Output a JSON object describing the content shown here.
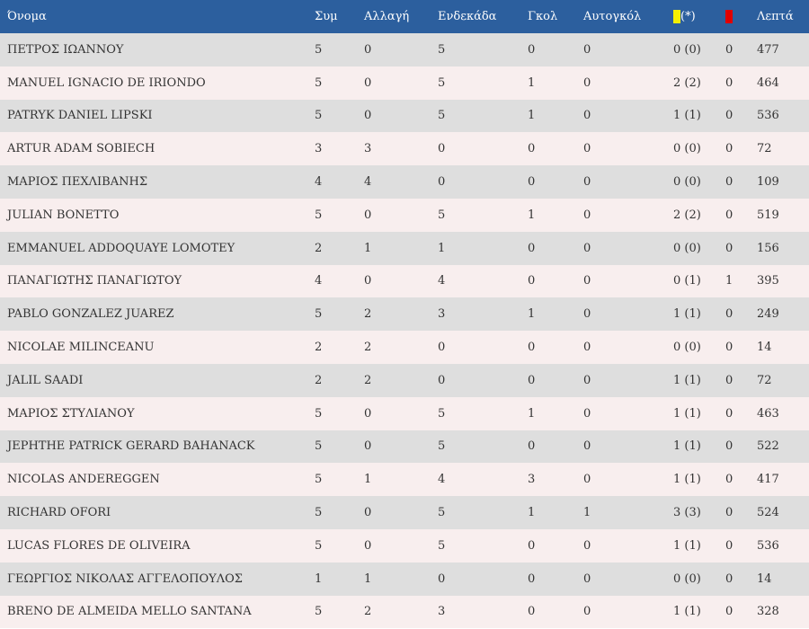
{
  "headers": {
    "name": "Όνομα",
    "apps": "Συμ",
    "sub": "Αλλαγή",
    "lineup": "Ενδεκάδα",
    "goals": "Γκολ",
    "own_goals": "Αυτογκόλ",
    "yellow_suffix": "(*)",
    "minutes": "Λεπτά"
  },
  "icons": {
    "yellow": "yellow-card-icon",
    "red": "red-card-icon"
  },
  "colors": {
    "header_bg": "#2c5f9e",
    "row_odd": "#dedede",
    "row_even": "#f8eeee",
    "yellow_card": "#f5f000",
    "red_card": "#e00000"
  },
  "rows": [
    {
      "name": "ΠΕΤΡΟΣ ΙΩΑΝΝΟΥ",
      "apps": "5",
      "sub": "0",
      "lineup": "5",
      "goals": "0",
      "own_goals": "0",
      "yellow": "0 (0)",
      "red": "0",
      "minutes": "477"
    },
    {
      "name": "MANUEL IGNACIO DE IRIONDO",
      "apps": "5",
      "sub": "0",
      "lineup": "5",
      "goals": "1",
      "own_goals": "0",
      "yellow": "2 (2)",
      "red": "0",
      "minutes": "464"
    },
    {
      "name": "PATRYK DANIEL LIPSKI",
      "apps": "5",
      "sub": "0",
      "lineup": "5",
      "goals": "1",
      "own_goals": "0",
      "yellow": "1 (1)",
      "red": "0",
      "minutes": "536"
    },
    {
      "name": "ARTUR ADAM SOBIECH",
      "apps": "3",
      "sub": "3",
      "lineup": "0",
      "goals": "0",
      "own_goals": "0",
      "yellow": "0 (0)",
      "red": "0",
      "minutes": "72"
    },
    {
      "name": "ΜΑΡΙΟΣ ΠΕΧΛΙΒΑΝΗΣ",
      "apps": "4",
      "sub": "4",
      "lineup": "0",
      "goals": "0",
      "own_goals": "0",
      "yellow": "0 (0)",
      "red": "0",
      "minutes": "109"
    },
    {
      "name": "JULIAN BONETTO",
      "apps": "5",
      "sub": "0",
      "lineup": "5",
      "goals": "1",
      "own_goals": "0",
      "yellow": "2 (2)",
      "red": "0",
      "minutes": "519"
    },
    {
      "name": "EMMANUEL ADDOQUAYE LOMOTEY",
      "apps": "2",
      "sub": "1",
      "lineup": "1",
      "goals": "0",
      "own_goals": "0",
      "yellow": "0 (0)",
      "red": "0",
      "minutes": "156"
    },
    {
      "name": "ΠΑΝΑΓΙΩΤΗΣ ΠΑΝΑΓΙΩΤΟΥ",
      "apps": "4",
      "sub": "0",
      "lineup": "4",
      "goals": "0",
      "own_goals": "0",
      "yellow": "0 (1)",
      "red": "1",
      "minutes": "395"
    },
    {
      "name": "PABLO GONZALEZ JUAREZ",
      "apps": "5",
      "sub": "2",
      "lineup": "3",
      "goals": "1",
      "own_goals": "0",
      "yellow": "1 (1)",
      "red": "0",
      "minutes": "249"
    },
    {
      "name": "NICOLAE MILINCEANU",
      "apps": "2",
      "sub": "2",
      "lineup": "0",
      "goals": "0",
      "own_goals": "0",
      "yellow": "0 (0)",
      "red": "0",
      "minutes": "14"
    },
    {
      "name": "JALIL SAADI",
      "apps": "2",
      "sub": "2",
      "lineup": "0",
      "goals": "0",
      "own_goals": "0",
      "yellow": "1 (1)",
      "red": "0",
      "minutes": "72"
    },
    {
      "name": "ΜΑΡΙΟΣ ΣΤΥΛΙΑΝΟΥ",
      "apps": "5",
      "sub": "0",
      "lineup": "5",
      "goals": "1",
      "own_goals": "0",
      "yellow": "1 (1)",
      "red": "0",
      "minutes": "463"
    },
    {
      "name": "JEPHTHE PATRICK GERARD BAHANACK",
      "apps": "5",
      "sub": "0",
      "lineup": "5",
      "goals": "0",
      "own_goals": "0",
      "yellow": "1 (1)",
      "red": "0",
      "minutes": "522"
    },
    {
      "name": "NICOLAS ANDEREGGEN",
      "apps": "5",
      "sub": "1",
      "lineup": "4",
      "goals": "3",
      "own_goals": "0",
      "yellow": "1 (1)",
      "red": "0",
      "minutes": "417"
    },
    {
      "name": "RICHARD OFORI",
      "apps": "5",
      "sub": "0",
      "lineup": "5",
      "goals": "1",
      "own_goals": "1",
      "yellow": "3 (3)",
      "red": "0",
      "minutes": "524"
    },
    {
      "name": "LUCAS FLORES DE OLIVEIRA",
      "apps": "5",
      "sub": "0",
      "lineup": "5",
      "goals": "0",
      "own_goals": "0",
      "yellow": "1 (1)",
      "red": "0",
      "minutes": "536"
    },
    {
      "name": "ΓΕΩΡΓΙΟΣ ΝΙΚΟΛΑΣ ΑΓΓΕΛΟΠΟΥΛΟΣ",
      "apps": "1",
      "sub": "1",
      "lineup": "0",
      "goals": "0",
      "own_goals": "0",
      "yellow": "0 (0)",
      "red": "0",
      "minutes": "14"
    },
    {
      "name": "BRENO DE ALMEIDA MELLO SANTANA",
      "apps": "5",
      "sub": "2",
      "lineup": "3",
      "goals": "0",
      "own_goals": "0",
      "yellow": "1 (1)",
      "red": "0",
      "minutes": "328"
    }
  ]
}
